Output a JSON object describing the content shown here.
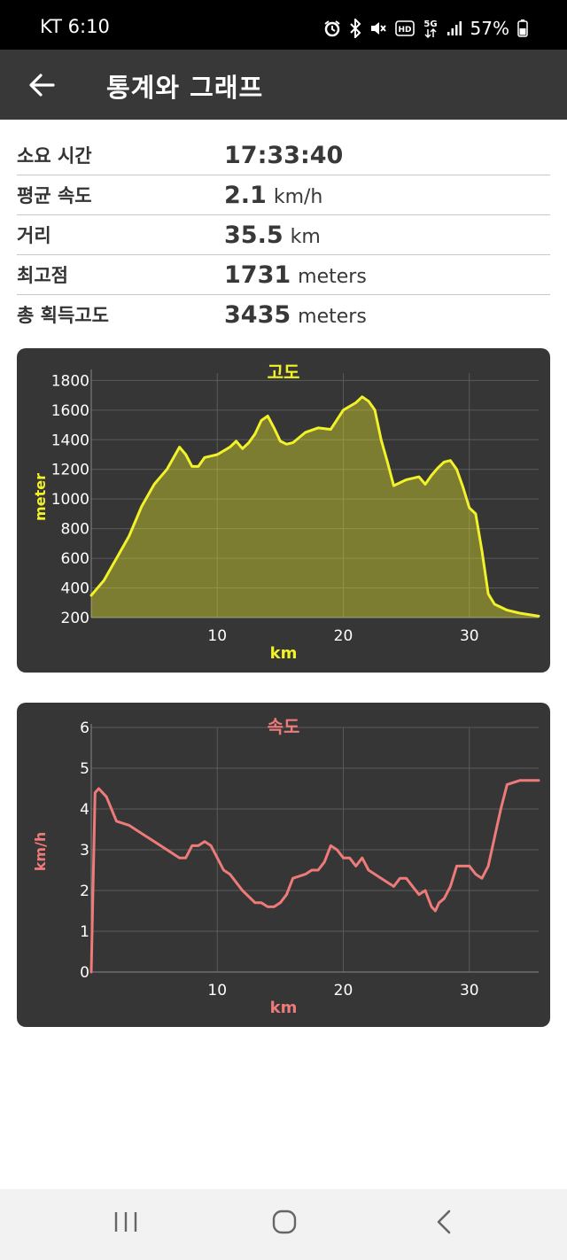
{
  "status_bar": {
    "carrier_time": "KT 6:10",
    "battery": "57%",
    "icons": [
      "alarm-icon",
      "bluetooth-icon",
      "mute-icon",
      "hd-icon",
      "5g-icon",
      "signal-icon",
      "battery-icon"
    ]
  },
  "app_bar": {
    "title": "통계와 그래프",
    "back_icon": "arrow-left-icon"
  },
  "stats": [
    {
      "label": "소요 시간",
      "value": "17:33:40",
      "unit": ""
    },
    {
      "label": "평균 속도",
      "value": "2.1",
      "unit": "km/h"
    },
    {
      "label": "거리",
      "value": "35.5",
      "unit": "km"
    },
    {
      "label": "최고점",
      "value": "1731",
      "unit": "meters"
    },
    {
      "label": "총 획득고도",
      "value": "3435",
      "unit": "meters"
    }
  ],
  "colors": {
    "elevation": "#f2f22a",
    "speed": "#ee7a7a",
    "card": "#363636",
    "grid": "#5a5a5a",
    "axis_text": "#ffffff"
  },
  "chart_data": [
    {
      "type": "area",
      "title": "고도",
      "xlabel": "km",
      "ylabel": "meter",
      "xlim": [
        0,
        35.5
      ],
      "ylim": [
        200,
        1850
      ],
      "x_ticks": [
        10,
        20,
        30
      ],
      "y_ticks": [
        200,
        400,
        600,
        800,
        1000,
        1200,
        1400,
        1600,
        1800
      ],
      "grid": true,
      "series": [
        {
          "x": [
            0,
            1,
            2,
            3,
            4,
            5,
            6,
            7,
            7.5,
            8,
            8.5,
            9,
            9.5,
            10,
            11,
            11.5,
            12,
            12.5,
            13,
            13.5,
            14,
            14.5,
            15,
            15.5,
            16,
            17,
            18,
            19,
            20,
            21,
            21.5,
            22,
            22.5,
            23,
            23.5,
            24,
            25,
            26,
            26.5,
            27,
            27.5,
            28,
            28.5,
            29,
            29.5,
            30,
            30.5,
            31,
            31.5,
            32,
            33,
            34,
            35.5
          ],
          "y": [
            350,
            450,
            600,
            750,
            950,
            1100,
            1200,
            1350,
            1300,
            1220,
            1220,
            1280,
            1290,
            1300,
            1350,
            1390,
            1340,
            1380,
            1440,
            1530,
            1560,
            1480,
            1390,
            1370,
            1380,
            1450,
            1480,
            1470,
            1600,
            1650,
            1690,
            1660,
            1600,
            1400,
            1250,
            1090,
            1130,
            1150,
            1100,
            1160,
            1210,
            1250,
            1260,
            1200,
            1080,
            940,
            900,
            650,
            360,
            290,
            250,
            230,
            210
          ]
        }
      ]
    },
    {
      "type": "line",
      "title": "속도",
      "xlabel": "km",
      "ylabel": "km/h",
      "xlim": [
        0,
        35.5
      ],
      "ylim": [
        0,
        6
      ],
      "x_ticks": [
        10,
        20,
        30
      ],
      "y_ticks": [
        0,
        1,
        2,
        3,
        4,
        5,
        6
      ],
      "grid": true,
      "series": [
        {
          "x": [
            0,
            0.3,
            0.6,
            1.2,
            2,
            3,
            4,
            5,
            6,
            6.5,
            7,
            7.5,
            8,
            8.5,
            9,
            9.5,
            10,
            10.5,
            11,
            11.5,
            12,
            13,
            13.5,
            14,
            14.5,
            15,
            15.5,
            16,
            17,
            17.5,
            18,
            18.5,
            19,
            19.5,
            20,
            20.5,
            21,
            21.5,
            22,
            22.5,
            23,
            24,
            24.5,
            25,
            25.5,
            26,
            26.5,
            27,
            27.3,
            27.6,
            28,
            28.5,
            29,
            30,
            30.5,
            31,
            31.5,
            32,
            32.5,
            33,
            34,
            35.5
          ],
          "y": [
            0,
            4.4,
            4.5,
            4.3,
            3.7,
            3.6,
            3.4,
            3.2,
            3.0,
            2.9,
            2.8,
            2.8,
            3.1,
            3.1,
            3.2,
            3.1,
            2.8,
            2.5,
            2.4,
            2.2,
            2.0,
            1.7,
            1.7,
            1.6,
            1.6,
            1.7,
            1.9,
            2.3,
            2.4,
            2.5,
            2.5,
            2.7,
            3.1,
            3.0,
            2.8,
            2.8,
            2.6,
            2.8,
            2.5,
            2.4,
            2.3,
            2.1,
            2.3,
            2.3,
            2.1,
            1.9,
            2.0,
            1.6,
            1.5,
            1.7,
            1.8,
            2.1,
            2.6,
            2.6,
            2.4,
            2.3,
            2.6,
            3.3,
            4.0,
            4.6,
            4.7,
            4.7
          ]
        }
      ]
    }
  ]
}
